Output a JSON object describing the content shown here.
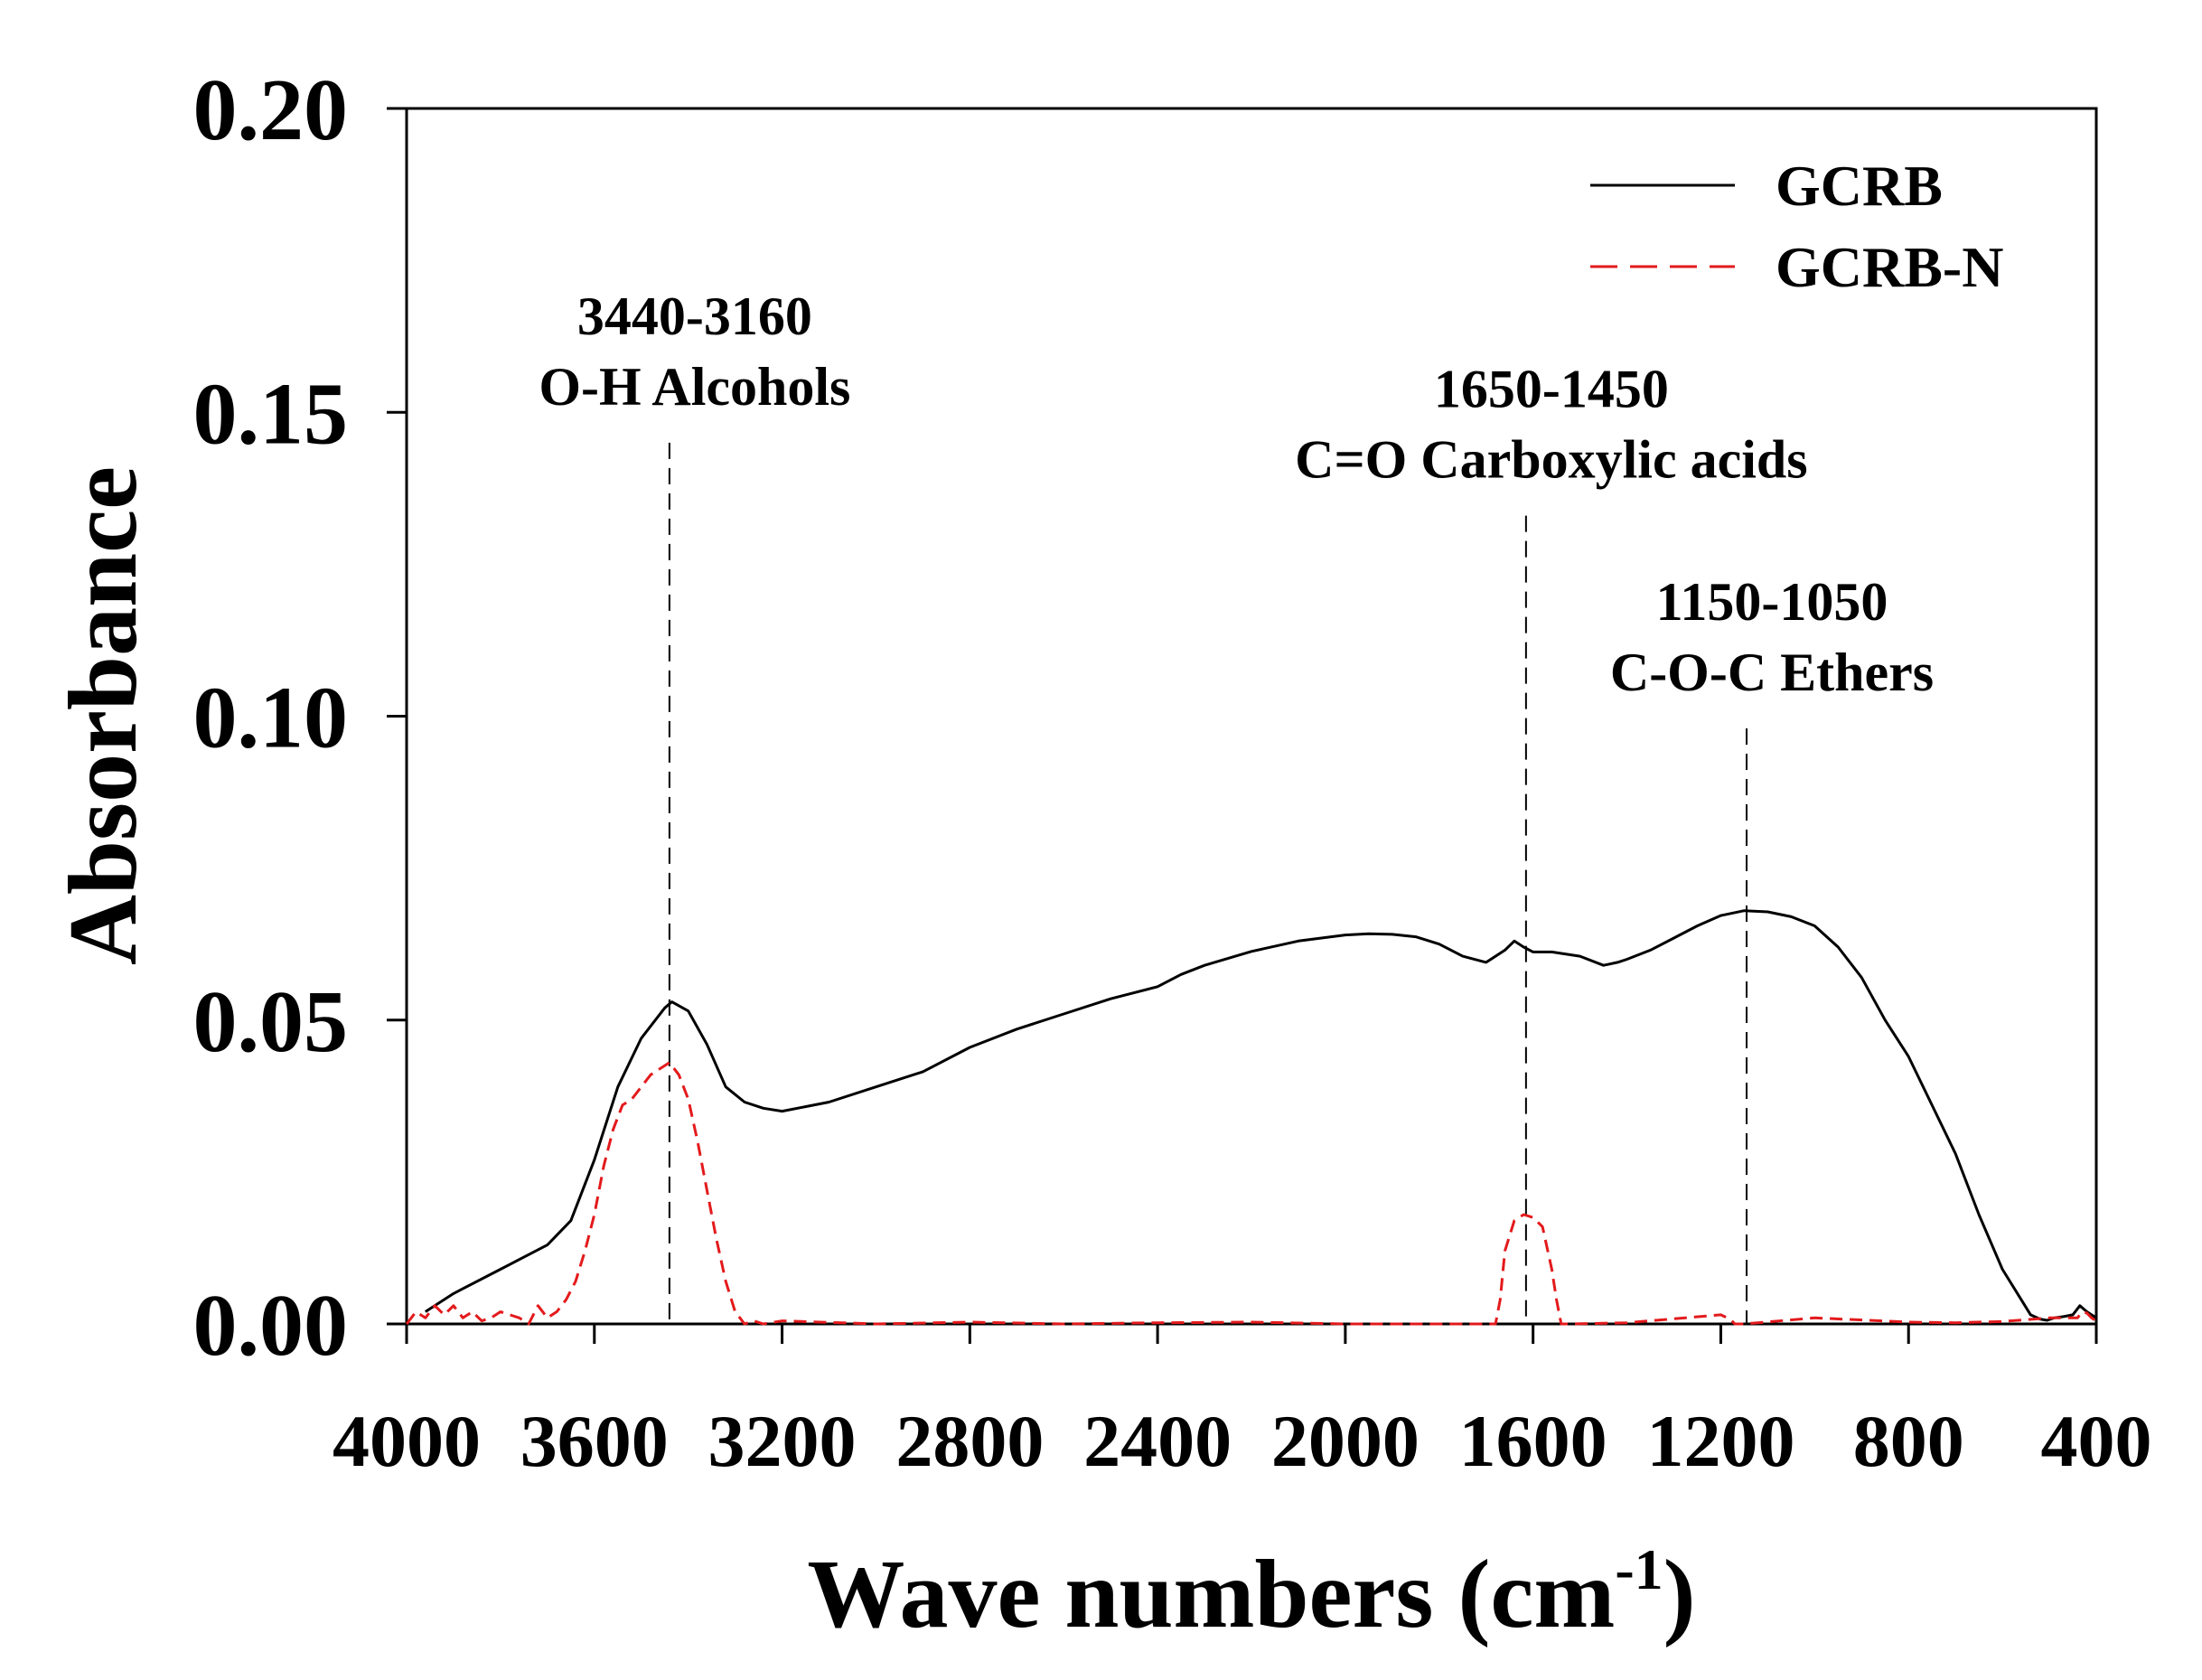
{
  "chart_data": {
    "type": "line",
    "xlabel": "Wave numbers (cm",
    "xlabel_superscript": "-1",
    "xlabel_close": ")",
    "ylabel": "Absorbance",
    "xlim": [
      4000,
      400
    ],
    "ylim": [
      0,
      0.2
    ],
    "x_ticks": [
      4000,
      3600,
      3200,
      2800,
      2400,
      2000,
      1600,
      1200,
      800,
      400
    ],
    "x_tick_labels": [
      "4000",
      "3600",
      "3200",
      "2800",
      "2400",
      "2000",
      "1600",
      "1200",
      "800",
      "400"
    ],
    "y_ticks": [
      0,
      0.05,
      0.1,
      0.15,
      0.2
    ],
    "y_tick_labels": [
      "0.00",
      "0.05",
      "0.10",
      "0.15",
      "0.20"
    ],
    "grid": false,
    "legend_position": "top-right",
    "series": [
      {
        "name": "GCRB",
        "color": "#000000",
        "style": "solid",
        "x": [
          3960,
          3900,
          3800,
          3700,
          3650,
          3600,
          3550,
          3500,
          3450,
          3435,
          3400,
          3360,
          3320,
          3280,
          3240,
          3200,
          3100,
          3000,
          2900,
          2800,
          2700,
          2600,
          2500,
          2400,
          2350,
          2300,
          2200,
          2100,
          2000,
          1950,
          1900,
          1850,
          1800,
          1750,
          1700,
          1660,
          1640,
          1620,
          1600,
          1560,
          1500,
          1450,
          1420,
          1400,
          1350,
          1300,
          1250,
          1200,
          1150,
          1100,
          1050,
          1000,
          950,
          900,
          850,
          800,
          750,
          700,
          650,
          600,
          560,
          540,
          520,
          505,
          490,
          470,
          450,
          435,
          420,
          400
        ],
        "y": [
          0.002,
          0.005,
          0.009,
          0.013,
          0.017,
          0.027,
          0.039,
          0.047,
          0.052,
          0.053,
          0.0515,
          0.046,
          0.039,
          0.0365,
          0.0355,
          0.035,
          0.0365,
          0.039,
          0.0415,
          0.0455,
          0.0485,
          0.051,
          0.0535,
          0.0555,
          0.0575,
          0.059,
          0.0613,
          0.063,
          0.064,
          0.0642,
          0.0641,
          0.0637,
          0.0625,
          0.0605,
          0.0595,
          0.0615,
          0.063,
          0.062,
          0.0612,
          0.0612,
          0.0605,
          0.059,
          0.0595,
          0.06,
          0.0615,
          0.0635,
          0.0655,
          0.0672,
          0.068,
          0.0678,
          0.067,
          0.0655,
          0.062,
          0.057,
          0.05,
          0.044,
          0.036,
          0.028,
          0.018,
          0.009,
          0.004,
          0.0015,
          0.0008,
          0.0006,
          0.001,
          0.0012,
          0.0015,
          0.003,
          0.002,
          0.001
        ]
      },
      {
        "name": "GCRB-N",
        "color": "#e31a1c",
        "style": "dashed",
        "x": [
          4000,
          3980,
          3960,
          3940,
          3920,
          3900,
          3880,
          3860,
          3840,
          3820,
          3800,
          3780,
          3760,
          3740,
          3720,
          3700,
          3680,
          3660,
          3640,
          3620,
          3600,
          3580,
          3560,
          3540,
          3520,
          3500,
          3480,
          3460,
          3440,
          3420,
          3400,
          3380,
          3360,
          3340,
          3320,
          3300,
          3280,
          3260,
          3240,
          3200,
          3000,
          2800,
          2600,
          2400,
          2200,
          2000,
          1800,
          1700,
          1680,
          1670,
          1660,
          1640,
          1620,
          1600,
          1580,
          1560,
          1550,
          1540,
          1520,
          1400,
          1200,
          1180,
          1170,
          1150,
          1000,
          800,
          700,
          600,
          500,
          440,
          430,
          420,
          410,
          400
        ],
        "y": [
          0.0,
          0.002,
          0.001,
          0.003,
          0.0015,
          0.003,
          0.001,
          0.002,
          0.0005,
          0.001,
          0.002,
          0.0015,
          0.001,
          0.0,
          0.003,
          0.001,
          0.002,
          0.004,
          0.007,
          0.012,
          0.018,
          0.026,
          0.032,
          0.036,
          0.037,
          0.039,
          0.041,
          0.042,
          0.043,
          0.041,
          0.037,
          0.03,
          0.022,
          0.014,
          0.007,
          0.002,
          0.0,
          0.0005,
          0.0,
          0.0005,
          0.0,
          0.0003,
          0.0,
          0.0002,
          0.0003,
          0.0,
          0.0,
          0.0,
          0.0,
          0.004,
          0.012,
          0.017,
          0.018,
          0.0175,
          0.016,
          0.009,
          0.004,
          0.0,
          0.0,
          0.0002,
          0.0015,
          0.0008,
          0.0,
          0.0,
          0.001,
          0.0003,
          0.0002,
          0.0004,
          0.001,
          0.001,
          0.002,
          0.0018,
          0.001,
          0.0005
        ]
      }
    ],
    "annotations": [
      {
        "x": 3440,
        "y_top": 0.145,
        "line1": "3440-3160",
        "line2": "O-H Alcohols"
      },
      {
        "x": 1615,
        "y_top": 0.133,
        "line1": "1650-1450",
        "line2": "C=O Carboxylic acids"
      },
      {
        "x": 1145,
        "y_top": 0.098,
        "line1": "1150-1050",
        "line2": "C-O-C Ethers"
      }
    ]
  }
}
